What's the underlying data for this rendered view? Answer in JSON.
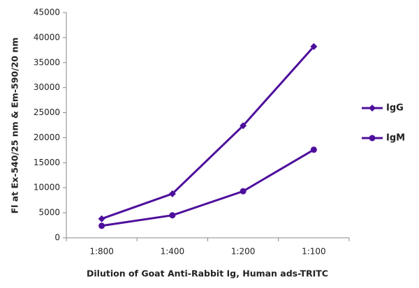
{
  "chart_data": {
    "type": "line",
    "x_label": "Dilution of Goat Anti-Rabbit Ig, Human ads-TRITC",
    "y_label": "Fl at Ex-540/25 nm & Em-590/20 nm",
    "categories": [
      "1:800",
      "1:400",
      "1:200",
      "1:100"
    ],
    "series": [
      {
        "name": "IgG",
        "color": "#4e0f9c",
        "marker": "diamond",
        "values": [
          3800,
          8800,
          22400,
          38200
        ]
      },
      {
        "name": "IgM",
        "color": "#4e0f9c",
        "marker": "circle",
        "values": [
          2400,
          4500,
          9300,
          17600
        ]
      }
    ],
    "ylim": [
      0,
      45000
    ],
    "yticks": [
      0,
      5000,
      10000,
      15000,
      20000,
      25000,
      30000,
      35000,
      40000,
      45000
    ],
    "legend": "right"
  }
}
